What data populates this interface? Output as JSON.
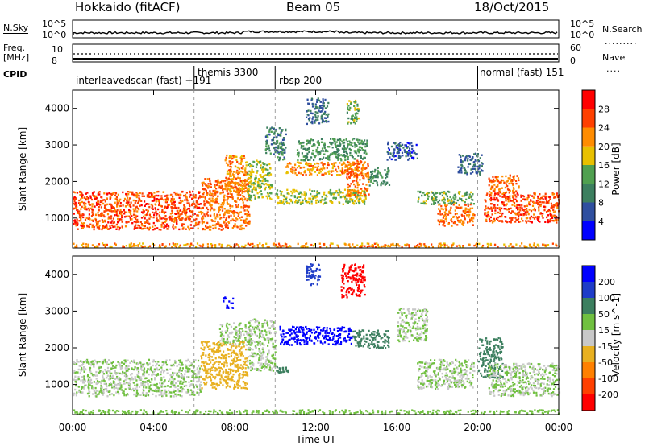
{
  "header": {
    "title": "Hokkaido (fitACF)",
    "beam": "Beam 05",
    "date": "18/Oct/2015"
  },
  "side_labels": {
    "nsky": "N.Sky",
    "freq_line1": "Freq.",
    "freq_line2": "[MHz]",
    "cpid": "CPID",
    "nsearch": "N.Search",
    "nave": "Nave",
    "nsky_ticks": [
      "10^5",
      "10^0"
    ],
    "freq_ticks": [
      "10",
      "8"
    ],
    "nsearch_ticks": [
      "10^5",
      "10^0"
    ],
    "nave_ticks": [
      "60",
      "0"
    ]
  },
  "cpid_segments": [
    {
      "label": "interleavedscan (fast) +191",
      "start_hour": 0
    },
    {
      "label": "themis 3300",
      "start_hour": 6.0
    },
    {
      "label": "rbsp 200",
      "start_hour": 10.0
    },
    {
      "label": "normal (fast) 151",
      "start_hour": 20.0
    }
  ],
  "axes": {
    "xlabel": "Time UT",
    "x_tick_labels": [
      "00:00",
      "04:00",
      "08:00",
      "12:00",
      "16:00",
      "20:00",
      "00:00"
    ],
    "ylabel": "Slant Range [km]",
    "y_tick_labels": [
      "1000",
      "2000",
      "3000",
      "4000"
    ]
  },
  "colorbars": {
    "power_label": "Power [dB]",
    "power_ticks": [
      "4",
      "8",
      "12",
      "16",
      "20",
      "24",
      "28"
    ],
    "power_colors": [
      "#0000ff",
      "#2f4f9f",
      "#3c7f5f",
      "#50a050",
      "#e8c000",
      "#ff8c00",
      "#ff4000",
      "#ff0000"
    ],
    "velocity_label": "Velocity [m s^-1]",
    "velocity_ticks": [
      "200",
      "100",
      "50",
      "15",
      "-15",
      "-50",
      "-100",
      "-200"
    ],
    "velocity_colors": [
      "#0000ff",
      "#1e3cc8",
      "#3c7f5f",
      "#70c040",
      "#c8c8c8",
      "#e8b020",
      "#ff8000",
      "#ff4000",
      "#ff0000"
    ]
  },
  "chart_data": [
    {
      "type": "heatmap",
      "title": "Power [dB]",
      "xlabel": "Time UT",
      "ylabel": "Slant Range [km]",
      "xlim_hours": [
        0,
        24
      ],
      "ylim_km": [
        180,
        4500
      ],
      "color_scale": [
        0,
        32
      ],
      "regions": [
        {
          "t0": 0.0,
          "t1": 6.3,
          "r0": 700,
          "r1": 1750,
          "value": 26
        },
        {
          "t0": 0.0,
          "t1": 24.0,
          "r0": 220,
          "r1": 330,
          "value": 22
        },
        {
          "t0": 6.3,
          "t1": 8.7,
          "r0": 700,
          "r1": 2100,
          "value": 24
        },
        {
          "t0": 7.5,
          "t1": 8.6,
          "r0": 1750,
          "r1": 2750,
          "value": 22
        },
        {
          "t0": 8.6,
          "t1": 9.8,
          "r0": 1500,
          "r1": 2600,
          "value": 16
        },
        {
          "t0": 9.5,
          "t1": 10.5,
          "r0": 2600,
          "r1": 3500,
          "value": 10
        },
        {
          "t0": 10.0,
          "t1": 14.5,
          "r0": 1400,
          "r1": 1800,
          "value": 16
        },
        {
          "t0": 10.5,
          "t1": 14.3,
          "r0": 2200,
          "r1": 2550,
          "value": 22
        },
        {
          "t0": 11.0,
          "t1": 14.5,
          "r0": 2600,
          "r1": 3200,
          "value": 12
        },
        {
          "t0": 13.5,
          "t1": 14.6,
          "r0": 1600,
          "r1": 2600,
          "value": 24
        },
        {
          "t0": 14.6,
          "t1": 15.6,
          "r0": 1900,
          "r1": 2400,
          "value": 12
        },
        {
          "t0": 15.5,
          "t1": 17.0,
          "r0": 2600,
          "r1": 3100,
          "value": 6
        },
        {
          "t0": 17.0,
          "t1": 19.8,
          "r0": 1400,
          "r1": 1750,
          "value": 14
        },
        {
          "t0": 18.0,
          "t1": 19.8,
          "r0": 800,
          "r1": 1400,
          "value": 24
        },
        {
          "t0": 19.0,
          "t1": 20.2,
          "r0": 2200,
          "r1": 2800,
          "value": 8
        },
        {
          "t0": 20.3,
          "t1": 24.0,
          "r0": 900,
          "r1": 1700,
          "value": 26
        },
        {
          "t0": 20.5,
          "t1": 22.0,
          "r0": 1700,
          "r1": 2200,
          "value": 24
        },
        {
          "t0": 11.5,
          "t1": 12.6,
          "r0": 3600,
          "r1": 4300,
          "value": 8
        },
        {
          "t0": 13.5,
          "t1": 14.1,
          "r0": 3600,
          "r1": 4300,
          "value": 14
        }
      ]
    },
    {
      "type": "heatmap",
      "title": "Velocity [m s^-1]",
      "xlabel": "Time UT",
      "ylabel": "Slant Range [km]",
      "xlim_hours": [
        0,
        24
      ],
      "ylim_km": [
        180,
        4500
      ],
      "color_scale": [
        -200,
        200
      ],
      "regions": [
        {
          "t0": 0.0,
          "t1": 6.3,
          "r0": 700,
          "r1": 1700,
          "value": 0
        },
        {
          "t0": 0.0,
          "t1": 24.0,
          "r0": 220,
          "r1": 330,
          "value": 20
        },
        {
          "t0": 6.3,
          "t1": 8.6,
          "r0": 900,
          "r1": 2200,
          "value": -30
        },
        {
          "t0": 7.2,
          "t1": 8.8,
          "r0": 2100,
          "r1": 2700,
          "value": 0
        },
        {
          "t0": 8.6,
          "t1": 10.0,
          "r0": 1400,
          "r1": 2800,
          "value": 0
        },
        {
          "t0": 7.4,
          "t1": 7.9,
          "r0": 3100,
          "r1": 3400,
          "value": 180
        },
        {
          "t0": 10.2,
          "t1": 13.8,
          "r0": 2100,
          "r1": 2600,
          "value": 160
        },
        {
          "t0": 13.8,
          "t1": 15.6,
          "r0": 2000,
          "r1": 2500,
          "value": 60
        },
        {
          "t0": 13.2,
          "t1": 14.4,
          "r0": 3400,
          "r1": 4300,
          "value": -180
        },
        {
          "t0": 11.5,
          "t1": 12.2,
          "r0": 3700,
          "r1": 4300,
          "value": 120
        },
        {
          "t0": 16.0,
          "t1": 17.5,
          "r0": 2200,
          "r1": 3100,
          "value": 0
        },
        {
          "t0": 17.0,
          "t1": 19.8,
          "r0": 900,
          "r1": 1700,
          "value": 0
        },
        {
          "t0": 20.0,
          "t1": 21.2,
          "r0": 1200,
          "r1": 2300,
          "value": 40
        },
        {
          "t0": 20.5,
          "t1": 24.0,
          "r0": 700,
          "r1": 1600,
          "value": 0
        },
        {
          "t0": 10.0,
          "t1": 10.6,
          "r0": 1300,
          "r1": 1500,
          "value": 40
        }
      ]
    }
  ]
}
